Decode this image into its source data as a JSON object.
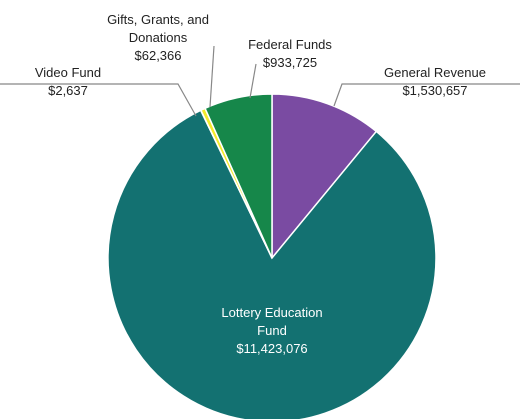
{
  "chart_data": {
    "type": "pie",
    "categories": [
      "General Revenue",
      "Lottery Education Fund",
      "Video Fund",
      "Gifts, Grants, and Donations",
      "Federal Funds"
    ],
    "values": [
      1530657,
      11423076,
      2637,
      62366,
      933725
    ],
    "value_labels": [
      "$1,530,657",
      "$11,423,076",
      "$2,637",
      "$62,366",
      "$933,725"
    ],
    "colors": [
      "#7a4ba2",
      "#137171",
      "#f0922b",
      "#f4ea2b",
      "#16874a"
    ]
  }
}
